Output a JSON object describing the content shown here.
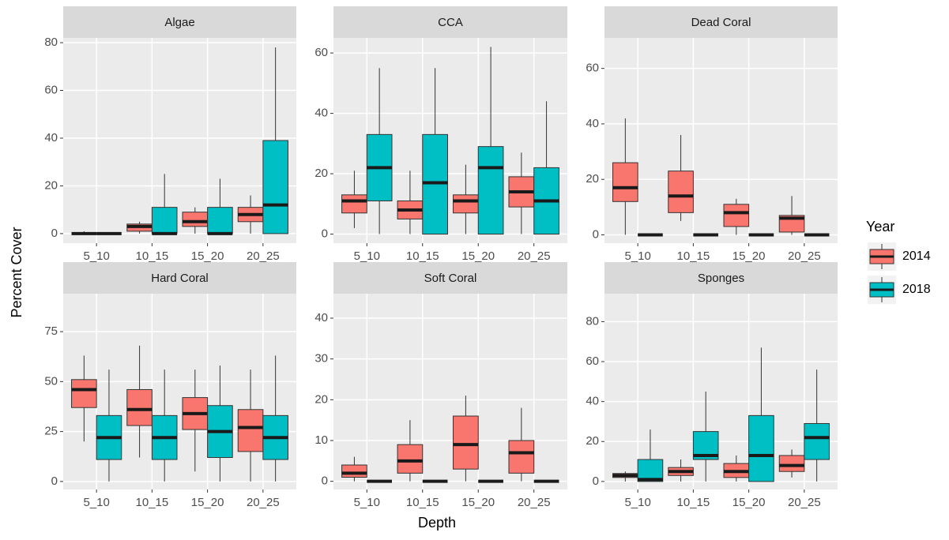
{
  "labels": {
    "x": "Depth",
    "y": "Percent Cover",
    "legend_title": "Year"
  },
  "chart_data": [
    {
      "type": "box",
      "title": "Algae",
      "categories": [
        "5_10",
        "10_15",
        "15_20",
        "20_25"
      ],
      "ylim": [
        -4,
        82
      ],
      "yticks": [
        0,
        20,
        40,
        60,
        80
      ],
      "grid": true,
      "series": [
        {
          "name": "2014",
          "color": "#F8766D",
          "values": [
            {
              "min": 0,
              "q1": 0,
              "median": 0,
              "q3": 0,
              "max": 1
            },
            {
              "min": 0,
              "q1": 1,
              "median": 3,
              "q3": 4,
              "max": 5
            },
            {
              "min": 0,
              "q1": 3,
              "median": 5,
              "q3": 9,
              "max": 11
            },
            {
              "min": 0,
              "q1": 5,
              "median": 8,
              "q3": 11,
              "max": 16
            }
          ]
        },
        {
          "name": "2018",
          "color": "#00BFC4",
          "values": [
            {
              "min": 0,
              "q1": 0,
              "median": 0,
              "q3": 0,
              "max": 0
            },
            {
              "min": 0,
              "q1": 0,
              "median": 0,
              "q3": 11,
              "max": 25
            },
            {
              "min": 0,
              "q1": 0,
              "median": 0,
              "q3": 11,
              "max": 23
            },
            {
              "min": 0,
              "q1": 0,
              "median": 12,
              "q3": 39,
              "max": 78
            }
          ]
        }
      ]
    },
    {
      "type": "box",
      "title": "CCA",
      "categories": [
        "5_10",
        "10_15",
        "15_20",
        "20_25"
      ],
      "ylim": [
        -3,
        65
      ],
      "yticks": [
        0,
        20,
        40,
        60
      ],
      "grid": true,
      "series": [
        {
          "name": "2014",
          "color": "#F8766D",
          "values": [
            {
              "min": 2,
              "q1": 7,
              "median": 11,
              "q3": 13,
              "max": 21
            },
            {
              "min": 0,
              "q1": 5,
              "median": 8,
              "q3": 11,
              "max": 21
            },
            {
              "min": 0,
              "q1": 7,
              "median": 11,
              "q3": 13,
              "max": 23
            },
            {
              "min": 0,
              "q1": 9,
              "median": 14,
              "q3": 19,
              "max": 27
            }
          ]
        },
        {
          "name": "2018",
          "color": "#00BFC4",
          "values": [
            {
              "min": 0,
              "q1": 11,
              "median": 22,
              "q3": 33,
              "max": 55
            },
            {
              "min": 0,
              "q1": 0,
              "median": 17,
              "q3": 33,
              "max": 55
            },
            {
              "min": 0,
              "q1": 0,
              "median": 22,
              "q3": 29,
              "max": 62
            },
            {
              "min": 0,
              "q1": 0,
              "median": 11,
              "q3": 22,
              "max": 44
            }
          ]
        }
      ]
    },
    {
      "type": "box",
      "title": "Dead Coral",
      "categories": [
        "5_10",
        "10_15",
        "15_20",
        "20_25"
      ],
      "ylim": [
        -3,
        71
      ],
      "yticks": [
        0,
        20,
        40,
        60
      ],
      "grid": true,
      "series": [
        {
          "name": "2014",
          "color": "#F8766D",
          "values": [
            {
              "min": 0,
              "q1": 12,
              "median": 17,
              "q3": 26,
              "max": 42
            },
            {
              "min": 5,
              "q1": 8,
              "median": 14,
              "q3": 23,
              "max": 36
            },
            {
              "min": 0,
              "q1": 3,
              "median": 8,
              "q3": 11,
              "max": 13
            },
            {
              "min": 0,
              "q1": 1,
              "median": 6,
              "q3": 7,
              "max": 14
            }
          ]
        },
        {
          "name": "2018",
          "color": "#00BFC4",
          "values": [
            {
              "min": 0,
              "q1": 0,
              "median": 0,
              "q3": 0,
              "max": 0
            },
            {
              "min": 0,
              "q1": 0,
              "median": 0,
              "q3": 0,
              "max": 0
            },
            {
              "min": 0,
              "q1": 0,
              "median": 0,
              "q3": 0,
              "max": 0
            },
            {
              "min": 0,
              "q1": 0,
              "median": 0,
              "q3": 0,
              "max": 0
            }
          ]
        }
      ]
    },
    {
      "type": "box",
      "title": "Hard Coral",
      "categories": [
        "5_10",
        "10_15",
        "15_20",
        "20_25"
      ],
      "ylim": [
        -4,
        94
      ],
      "yticks": [
        0,
        25,
        50,
        75
      ],
      "grid": true,
      "series": [
        {
          "name": "2014",
          "color": "#F8766D",
          "values": [
            {
              "min": 20,
              "q1": 37,
              "median": 46,
              "q3": 51,
              "max": 63
            },
            {
              "min": 12,
              "q1": 28,
              "median": 36,
              "q3": 46,
              "max": 68
            },
            {
              "min": 5,
              "q1": 26,
              "median": 34,
              "q3": 42,
              "max": 56
            },
            {
              "min": 0,
              "q1": 15,
              "median": 27,
              "q3": 36,
              "max": 56
            }
          ]
        },
        {
          "name": "2018",
          "color": "#00BFC4",
          "values": [
            {
              "min": 0,
              "q1": 11,
              "median": 22,
              "q3": 33,
              "max": 56
            },
            {
              "min": 0,
              "q1": 11,
              "median": 22,
              "q3": 33,
              "max": 56
            },
            {
              "min": 0,
              "q1": 12,
              "median": 25,
              "q3": 38,
              "max": 58
            },
            {
              "min": 0,
              "q1": 11,
              "median": 22,
              "q3": 33,
              "max": 63
            }
          ]
        }
      ]
    },
    {
      "type": "box",
      "title": "Soft Coral",
      "categories": [
        "5_10",
        "10_15",
        "15_20",
        "20_25"
      ],
      "ylim": [
        -2,
        46
      ],
      "yticks": [
        0,
        10,
        20,
        30,
        40
      ],
      "grid": true,
      "series": [
        {
          "name": "2014",
          "color": "#F8766D",
          "values": [
            {
              "min": 0,
              "q1": 1,
              "median": 2,
              "q3": 4,
              "max": 6
            },
            {
              "min": 0,
              "q1": 2,
              "median": 5,
              "q3": 9,
              "max": 15
            },
            {
              "min": 0,
              "q1": 3,
              "median": 9,
              "q3": 16,
              "max": 21
            },
            {
              "min": 0,
              "q1": 2,
              "median": 7,
              "q3": 10,
              "max": 18
            }
          ]
        },
        {
          "name": "2018",
          "color": "#00BFC4",
          "values": [
            {
              "min": 0,
              "q1": 0,
              "median": 0,
              "q3": 0,
              "max": 0
            },
            {
              "min": 0,
              "q1": 0,
              "median": 0,
              "q3": 0,
              "max": 0
            },
            {
              "min": 0,
              "q1": 0,
              "median": 0,
              "q3": 0,
              "max": 0
            },
            {
              "min": 0,
              "q1": 0,
              "median": 0,
              "q3": 0,
              "max": 0
            }
          ]
        }
      ]
    },
    {
      "type": "box",
      "title": "Sponges",
      "categories": [
        "5_10",
        "10_15",
        "15_20",
        "20_25"
      ],
      "ylim": [
        -4,
        94
      ],
      "yticks": [
        0,
        20,
        40,
        60,
        80
      ],
      "grid": true,
      "series": [
        {
          "name": "2014",
          "color": "#F8766D",
          "values": [
            {
              "min": 0,
              "q1": 2,
              "median": 3,
              "q3": 4,
              "max": 5
            },
            {
              "min": 0,
              "q1": 3,
              "median": 5,
              "q3": 7,
              "max": 11
            },
            {
              "min": 0,
              "q1": 2,
              "median": 5,
              "q3": 9,
              "max": 13
            },
            {
              "min": 2,
              "q1": 5,
              "median": 8,
              "q3": 13,
              "max": 16
            }
          ]
        },
        {
          "name": "2018",
          "color": "#00BFC4",
          "values": [
            {
              "min": 0,
              "q1": 0,
              "median": 1,
              "q3": 11,
              "max": 26
            },
            {
              "min": 0,
              "q1": 11,
              "median": 13,
              "q3": 25,
              "max": 45
            },
            {
              "min": 0,
              "q1": 0,
              "median": 13,
              "q3": 33,
              "max": 67
            },
            {
              "min": 0,
              "q1": 11,
              "median": 22,
              "q3": 29,
              "max": 56
            }
          ]
        }
      ]
    }
  ]
}
